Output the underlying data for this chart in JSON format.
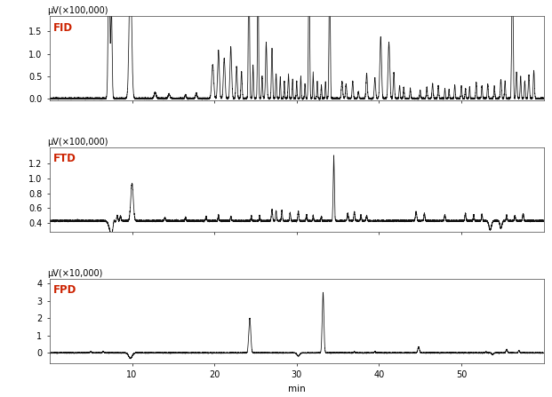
{
  "xlabel": "min",
  "xlim": [
    0,
    60
  ],
  "xticks": [
    10,
    20,
    30,
    40,
    50
  ],
  "panels": [
    {
      "label": "FID",
      "ylabel": "μV(×100,000)",
      "ylim": [
        -0.05,
        1.85
      ],
      "yticks": [
        0.0,
        0.5,
        1.0,
        1.5
      ],
      "label_color": "#cc2200"
    },
    {
      "label": "FTD",
      "ylabel": "μV(×100,000)",
      "ylim": [
        0.28,
        1.42
      ],
      "yticks": [
        0.4,
        0.6,
        0.8,
        1.0,
        1.2
      ],
      "label_color": "#cc2200"
    },
    {
      "label": "FPD",
      "ylabel": "μV(×10,000)",
      "ylim": [
        -0.6,
        4.3
      ],
      "yticks": [
        0.0,
        1.0,
        2.0,
        3.0,
        4.0
      ],
      "label_color": "#cc2200"
    }
  ],
  "line_color": "#111111",
  "line_width": 0.55,
  "background": "#ffffff",
  "tick_fontsize": 7,
  "ylabel_fontsize": 7,
  "xlabel_fontsize": 7.5,
  "detector_label_fontsize": 8.5
}
